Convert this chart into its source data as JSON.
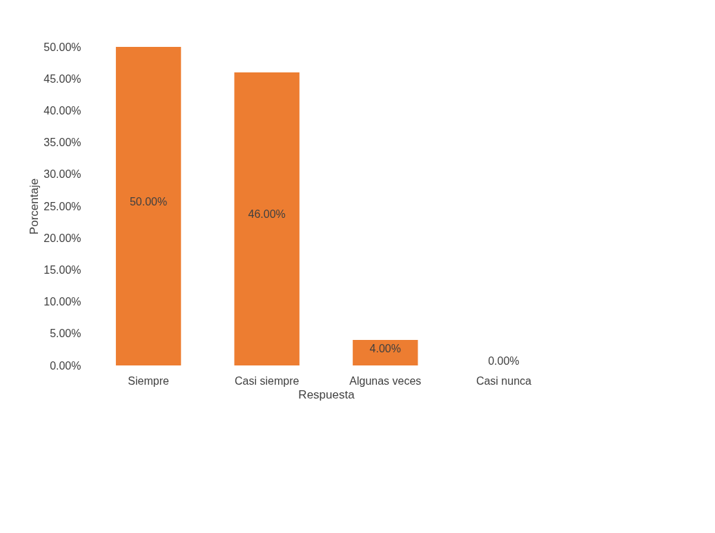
{
  "chart_data": {
    "type": "bar",
    "xlabel": "Respuesta",
    "ylabel": "Porcentaje",
    "categories": [
      "Siempre",
      "Casi siempre",
      "Algunas veces",
      "Casi nunca"
    ],
    "values": [
      50,
      46,
      4,
      0
    ],
    "color": "#ed7d31",
    "value_labels": [
      "50.00%",
      "46.00%",
      "4.00%",
      "0.00%"
    ],
    "ylim": [
      0,
      50
    ],
    "yticks": [
      {
        "value": 0,
        "label": "0.00%"
      },
      {
        "value": 5,
        "label": "5.00%"
      },
      {
        "value": 10,
        "label": "10.00%"
      },
      {
        "value": 15,
        "label": "15.00%"
      },
      {
        "value": 20,
        "label": "20.00%"
      },
      {
        "value": 25,
        "label": "25.00%"
      },
      {
        "value": 30,
        "label": "30.00%"
      },
      {
        "value": 35,
        "label": "35.00%"
      },
      {
        "value": 40,
        "label": "40.00%"
      },
      {
        "value": 45,
        "label": "45.00%"
      },
      {
        "value": 50,
        "label": "50.00%"
      }
    ],
    "grid": false
  }
}
